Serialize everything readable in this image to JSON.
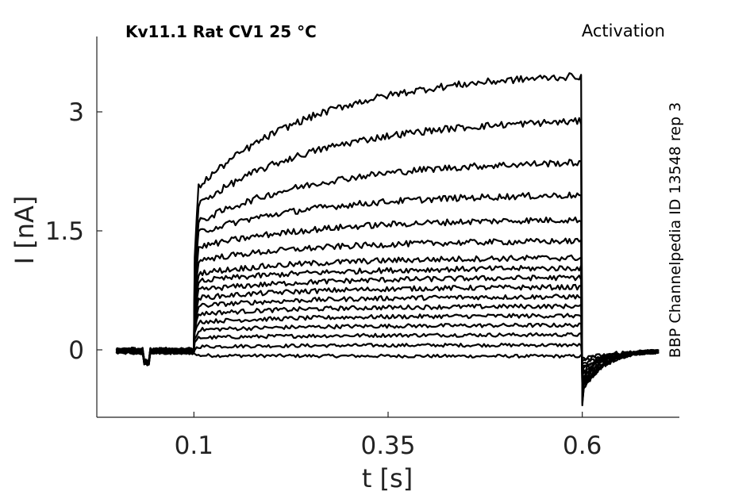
{
  "chart_data": {
    "type": "line",
    "title": "Kv11.1  Rat  CV1  25 °C",
    "protocol_label": "Activation",
    "source_label": "BBP Channelpedia ID 13548 rep 3",
    "xlabel": "t [s]",
    "ylabel": "I [nA]",
    "xlim": [
      -0.025,
      0.725
    ],
    "ylim": [
      -0.85,
      3.95
    ],
    "xticks": [
      0.1,
      0.35,
      0.6
    ],
    "xtick_labels": [
      "0.1",
      "0.35",
      "0.6"
    ],
    "yticks": [
      0,
      1.5,
      3
    ],
    "ytick_labels": [
      "0",
      "1.5",
      "3"
    ],
    "grid": false,
    "stimulus_window": [
      0.1,
      0.6
    ],
    "series_end_values": [
      -0.08,
      0.06,
      0.19,
      0.31,
      0.43,
      0.55,
      0.67,
      0.79,
      0.91,
      1.03,
      1.16,
      1.37,
      1.64,
      1.95,
      2.36,
      2.88,
      3.45
    ],
    "series_start_values": [
      -0.07,
      0.04,
      0.15,
      0.25,
      0.35,
      0.45,
      0.55,
      0.65,
      0.75,
      0.86,
      0.96,
      1.12,
      1.28,
      1.46,
      1.58,
      1.79,
      2.0
    ],
    "tail_min_values": [
      -0.1,
      -0.14,
      -0.18,
      -0.22,
      -0.26,
      -0.3,
      -0.34,
      -0.38,
      -0.42,
      -0.45,
      -0.49,
      -0.53,
      -0.57,
      -0.6,
      -0.64,
      -0.67,
      -0.7
    ]
  }
}
